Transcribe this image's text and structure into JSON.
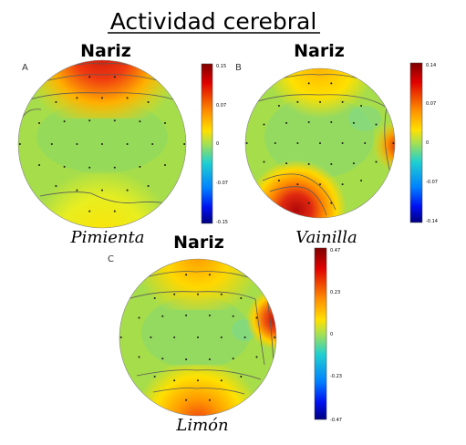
{
  "figure": {
    "title": "Actividad cerebral",
    "nose_label": "Nariz"
  },
  "panels": [
    {
      "letter": "A",
      "caption": "Pimienta",
      "colorbar": {
        "max": "0.15",
        "upper": "0.07",
        "mid": "0",
        "lower": "-0.07",
        "min": "-0.15"
      },
      "hotspots": [
        {
          "region": "frontal",
          "intensity": 1.0
        },
        {
          "region": "occipital",
          "intensity": 0.35
        }
      ]
    },
    {
      "letter": "B",
      "caption": "Vainilla",
      "colorbar": {
        "max": "0.14",
        "upper": "0.07",
        "mid": "0",
        "lower": "-0.07",
        "min": "-0.14"
      },
      "hotspots": [
        {
          "region": "occipital-left",
          "intensity": 1.0
        },
        {
          "region": "right-temporal",
          "intensity": 0.8
        },
        {
          "region": "frontal",
          "intensity": 0.55
        }
      ]
    },
    {
      "letter": "C",
      "caption": "Limón",
      "colorbar": {
        "max": "0.47",
        "upper": "0.23",
        "mid": "0",
        "lower": "-0.23",
        "min": "-0.47"
      },
      "hotspots": [
        {
          "region": "right-temporal",
          "intensity": 1.0
        },
        {
          "region": "occipital",
          "intensity": 0.75
        },
        {
          "region": "frontal",
          "intensity": 0.5
        }
      ]
    }
  ],
  "colors": {
    "base": "#a6dd4a",
    "warm": "#ffd200",
    "hot": "#ff6a00",
    "peak": "#c8120b",
    "cool": "#7fd98a"
  }
}
